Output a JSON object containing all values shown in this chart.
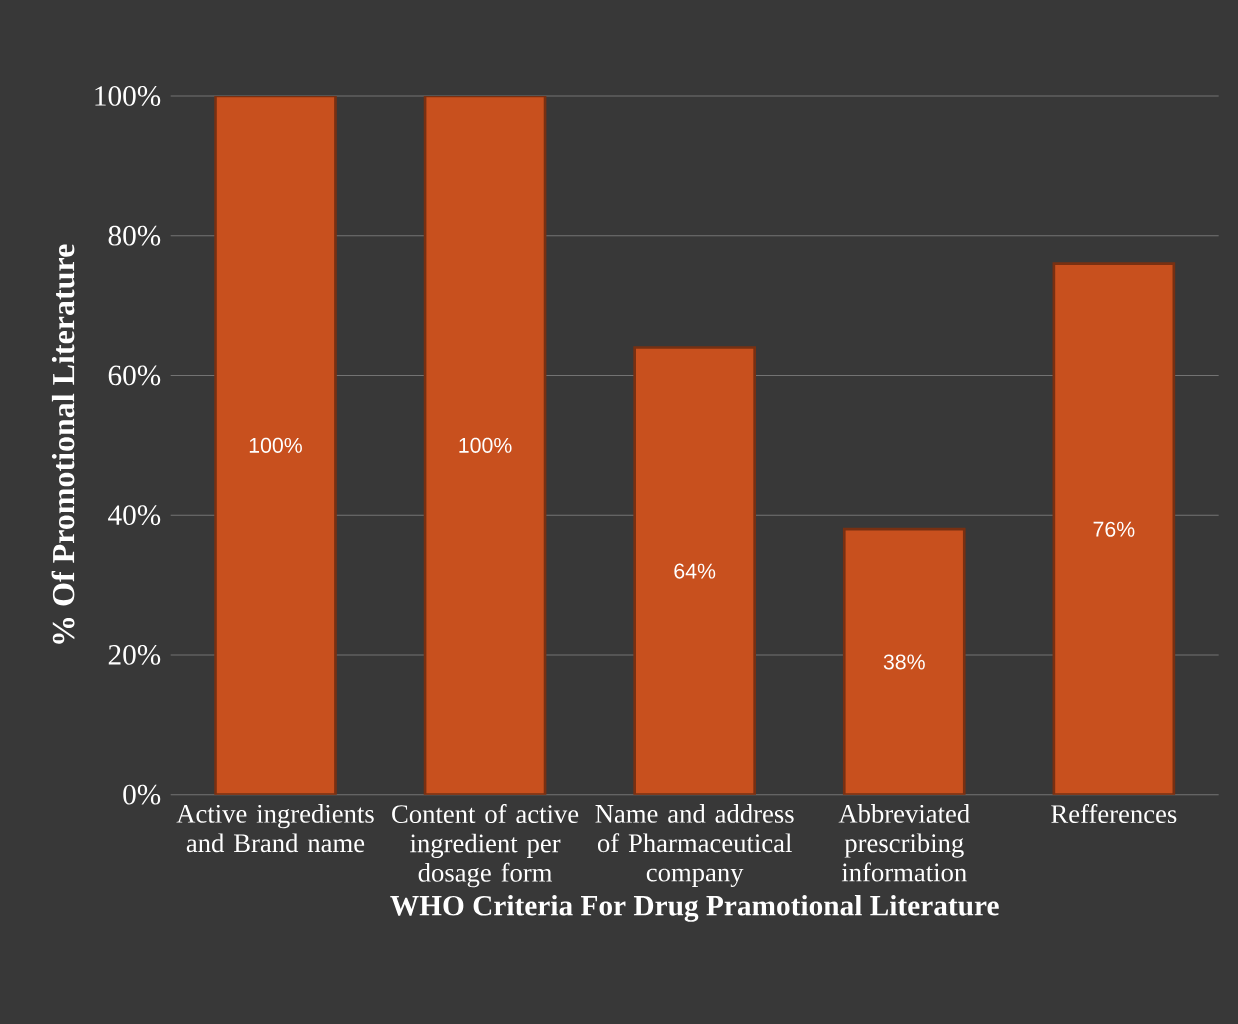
{
  "chart_data": {
    "type": "bar",
    "xlabel": "WHO Criteria For Drug Pramotional Literature",
    "ylabel": "% Of Promotional Literature",
    "categories": [
      "Active ingredients and Brand name",
      "Content of active ingredient per dosage form",
      "Name and address of Pharmaceutical company",
      "Abbreviated prescribing information",
      "Refferences"
    ],
    "values": [
      100,
      100,
      64,
      38,
      76
    ],
    "value_labels": [
      "100%",
      "100%",
      "64%",
      "38%",
      "76%"
    ],
    "color": "#c8501e",
    "ylim": [
      0,
      100
    ],
    "yticks": [
      {
        "value": 0,
        "label": "0%"
      },
      {
        "value": 20,
        "label": "20%"
      },
      {
        "value": 40,
        "label": "40%"
      },
      {
        "value": 60,
        "label": "60%"
      },
      {
        "value": 80,
        "label": "80%"
      },
      {
        "value": 100,
        "label": "100%"
      }
    ],
    "grid": "y"
  }
}
